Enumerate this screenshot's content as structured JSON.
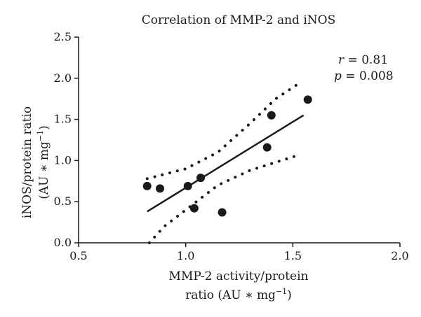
{
  "chart_data": {
    "type": "scatter",
    "title": "Correlation of MMP-2 and iNOS",
    "xlabel": {
      "line1": "MMP-2 activity/protein",
      "line2_prefix": "ratio (AU ∗ mg",
      "line2_sup": "−1",
      "line2_suffix": ")"
    },
    "ylabel": {
      "line1": "iNOS/protein ratio",
      "line2_prefix": "(AU ∗ mg",
      "line2_sup": "−1",
      "line2_suffix": ")"
    },
    "xlim": [
      0.5,
      2.0
    ],
    "ylim": [
      0.0,
      2.5
    ],
    "xticks": [
      0.5,
      1.0,
      1.5,
      2.0
    ],
    "xtick_labels": [
      "0.5",
      "1.0",
      "1.5",
      "2.0"
    ],
    "yticks": [
      0.0,
      0.5,
      1.0,
      1.5,
      2.0,
      2.5
    ],
    "ytick_labels": [
      "0.0",
      "0.5",
      "1.0",
      "1.5",
      "2.0",
      "2.5"
    ],
    "points": [
      {
        "x": 0.82,
        "y": 0.69
      },
      {
        "x": 0.88,
        "y": 0.66
      },
      {
        "x": 1.01,
        "y": 0.69
      },
      {
        "x": 1.07,
        "y": 0.79
      },
      {
        "x": 1.04,
        "y": 0.42
      },
      {
        "x": 1.17,
        "y": 0.37
      },
      {
        "x": 1.38,
        "y": 1.16
      },
      {
        "x": 1.4,
        "y": 1.55
      },
      {
        "x": 1.57,
        "y": 1.74
      }
    ],
    "regression_line": [
      {
        "x": 0.82,
        "y": 0.38
      },
      {
        "x": 1.55,
        "y": 1.55
      }
    ],
    "confidence_upper": [
      {
        "x": 0.82,
        "y": 0.78
      },
      {
        "x": 1.0,
        "y": 0.9
      },
      {
        "x": 1.15,
        "y": 1.1
      },
      {
        "x": 1.3,
        "y": 1.45
      },
      {
        "x": 1.42,
        "y": 1.75
      },
      {
        "x": 1.53,
        "y": 1.94
      }
    ],
    "confidence_lower": [
      {
        "x": 0.83,
        "y": 0.0
      },
      {
        "x": 0.9,
        "y": 0.2
      },
      {
        "x": 1.0,
        "y": 0.4
      },
      {
        "x": 1.15,
        "y": 0.7
      },
      {
        "x": 1.3,
        "y": 0.88
      },
      {
        "x": 1.52,
        "y": 1.06
      }
    ],
    "stats": {
      "r_symbol": "r",
      "r_text": " = 0.81",
      "p_symbol": "p",
      "p_text": " = 0.008"
    },
    "grid": false,
    "colors": {
      "points": "#1a1a1a",
      "line": "#1a1a1a"
    }
  }
}
